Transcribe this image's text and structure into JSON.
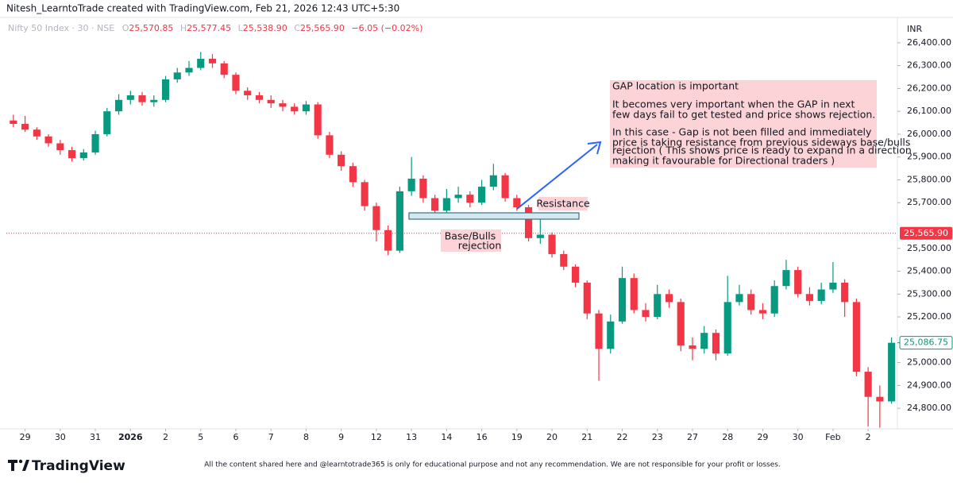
{
  "credit": "Nitesh_LearntoTrade created with TradingView.com, Feb 21, 2026 12:43 UTC+5:30",
  "header": {
    "symbol": "Nifty 50 Index · 30 · NSE",
    "o_key": "O",
    "o": "25,570.85",
    "h_key": "H",
    "h": "25,577.45",
    "l_key": "L",
    "l": "25,538.90",
    "c_key": "C",
    "c": "25,565.90",
    "change": "−6.05 (−0.02%)"
  },
  "currency": "INR",
  "annotations": {
    "note": [
      "GAP location is important",
      "It becomes very important when the GAP in next",
      "few days fail to get tested and price shows rejection.",
      "In this case - Gap is not been filled and immediately",
      "price is taking resistance from previous sideways base/bulls",
      "rejection ( This shows price is ready to expand in a direction",
      "making it favourable for Directional traders )"
    ],
    "resistance": "Resistance",
    "base": [
      "Base/Bulls",
      "rejection"
    ]
  },
  "footer": {
    "brand": "TradingView",
    "disclaimer": "All the content shared here and @learntotrade365 is only for educational purpose and not any recommendation. We are not responsible for your profit or losses."
  },
  "chart_data": {
    "type": "candlestick",
    "up_color": "#089981",
    "down_color": "#f23645",
    "xlim": [
      -0.6,
      75.5
    ],
    "xticks": [
      {
        "value": 1,
        "label": "29"
      },
      {
        "value": 4,
        "label": "30"
      },
      {
        "value": 7,
        "label": "31"
      },
      {
        "value": 10,
        "label": "2026"
      },
      {
        "value": 13,
        "label": "2"
      },
      {
        "value": 16,
        "label": "5"
      },
      {
        "value": 19,
        "label": "6"
      },
      {
        "value": 22,
        "label": "7"
      },
      {
        "value": 25,
        "label": "8"
      },
      {
        "value": 28,
        "label": "9"
      },
      {
        "value": 31,
        "label": "12"
      },
      {
        "value": 34,
        "label": "13"
      },
      {
        "value": 37,
        "label": "14"
      },
      {
        "value": 40,
        "label": "16"
      },
      {
        "value": 43,
        "label": "19"
      },
      {
        "value": 46,
        "label": "20"
      },
      {
        "value": 49,
        "label": "21"
      },
      {
        "value": 52,
        "label": "22"
      },
      {
        "value": 55,
        "label": "23"
      },
      {
        "value": 58,
        "label": "27"
      },
      {
        "value": 61,
        "label": "28"
      },
      {
        "value": 64,
        "label": "29"
      },
      {
        "value": 67,
        "label": "30"
      },
      {
        "value": 70,
        "label": "Feb"
      },
      {
        "value": 73,
        "label": "2"
      }
    ],
    "ylim": [
      24710,
      26490
    ],
    "yticks": [
      {
        "value": 24800,
        "label": "24,800.00"
      },
      {
        "value": 24900,
        "label": "24,900.00"
      },
      {
        "value": 25000,
        "label": "25,000.00"
      },
      {
        "value": 25200,
        "label": "25,200.00"
      },
      {
        "value": 25300,
        "label": "25,300.00"
      },
      {
        "value": 25400,
        "label": "25,400.00"
      },
      {
        "value": 25500,
        "label": "25,500.00"
      },
      {
        "value": 25700,
        "label": "25,700.00"
      },
      {
        "value": 25800,
        "label": "25,800.00"
      },
      {
        "value": 25900,
        "label": "25,900.00"
      },
      {
        "value": 26000,
        "label": "26,000.00"
      },
      {
        "value": 26100,
        "label": "26,100.00"
      },
      {
        "value": 26200,
        "label": "26,200.00"
      },
      {
        "value": 26300,
        "label": "26,300.00"
      },
      {
        "value": 26400,
        "label": "26,400.00"
      }
    ],
    "price_line": {
      "value": 25565.9,
      "label": "25,565.90"
    },
    "last_price": {
      "value": 25086.75,
      "label": "25,086.75"
    },
    "open": [
      26060,
      26045,
      26020,
      25990,
      25960,
      25930,
      25895,
      25920,
      26000,
      26100,
      26150,
      26170,
      26140,
      26150,
      26240,
      26270,
      26290,
      26330,
      26310,
      26260,
      26190,
      26170,
      26150,
      26135,
      26120,
      26100,
      26130,
      25995,
      25910,
      25860,
      25790,
      25685,
      25580,
      25490,
      25750,
      25805,
      25720,
      25665,
      25720,
      25735,
      25700,
      25770,
      25820,
      25720,
      25680,
      25545,
      25560,
      25475,
      25420,
      25350,
      25215,
      25060,
      25180,
      25370,
      25230,
      25200,
      25300,
      25265,
      25075,
      25060,
      25130,
      25040,
      25265,
      25300,
      25230,
      25215,
      25335,
      25405,
      25300,
      25270,
      25320,
      25350,
      25265,
      24960,
      24850,
      24830
    ],
    "high": [
      26085,
      26080,
      26030,
      26000,
      25975,
      25945,
      25935,
      26015,
      26115,
      26175,
      26190,
      26185,
      26170,
      26255,
      26290,
      26320,
      26360,
      26350,
      26320,
      26270,
      26205,
      26185,
      26170,
      26150,
      26135,
      26145,
      26140,
      26010,
      25925,
      25875,
      25800,
      25700,
      25600,
      25770,
      25900,
      25820,
      25735,
      25760,
      25770,
      25750,
      25800,
      25870,
      25830,
      25735,
      25690,
      25640,
      25570,
      25490,
      25430,
      25360,
      25230,
      25210,
      25420,
      25390,
      25260,
      25340,
      25320,
      25280,
      25110,
      25160,
      25145,
      25380,
      25340,
      25320,
      25260,
      25360,
      25450,
      25420,
      25330,
      25350,
      25440,
      25365,
      25280,
      24980,
      24900,
      25110
    ],
    "low": [
      26030,
      26010,
      25975,
      25945,
      25910,
      25880,
      25885,
      25910,
      25990,
      26085,
      26130,
      26125,
      26120,
      26140,
      26225,
      26255,
      26280,
      26290,
      26245,
      26175,
      26150,
      26135,
      26115,
      26100,
      26085,
      26085,
      25980,
      25895,
      25840,
      25770,
      25665,
      25530,
      25470,
      25480,
      25730,
      25700,
      25640,
      25650,
      25700,
      25680,
      25690,
      25755,
      25705,
      25665,
      25530,
      25520,
      25460,
      25405,
      25330,
      25190,
      24920,
      25040,
      25170,
      25215,
      25180,
      25190,
      25240,
      25050,
      25010,
      25040,
      25010,
      25030,
      25250,
      25210,
      25190,
      25200,
      25320,
      25285,
      25250,
      25255,
      25305,
      25200,
      24940,
      24720,
      24715,
      24820
    ],
    "close": [
      26045,
      26020,
      25990,
      25960,
      25930,
      25895,
      25920,
      26000,
      26100,
      26150,
      26170,
      26140,
      26150,
      26240,
      26270,
      26290,
      26330,
      26310,
      26260,
      26190,
      26170,
      26150,
      26135,
      26120,
      26100,
      26130,
      25995,
      25910,
      25860,
      25790,
      25685,
      25580,
      25490,
      25750,
      25805,
      25720,
      25665,
      25720,
      25735,
      25700,
      25770,
      25820,
      25720,
      25680,
      25545,
      25560,
      25475,
      25420,
      25350,
      25215,
      25060,
      25180,
      25370,
      25230,
      25200,
      25300,
      25265,
      25075,
      25060,
      25130,
      25040,
      25265,
      25300,
      25230,
      25215,
      25335,
      25405,
      25300,
      25270,
      25320,
      25350,
      25265,
      24960,
      24850,
      24830,
      25086.75
    ]
  }
}
